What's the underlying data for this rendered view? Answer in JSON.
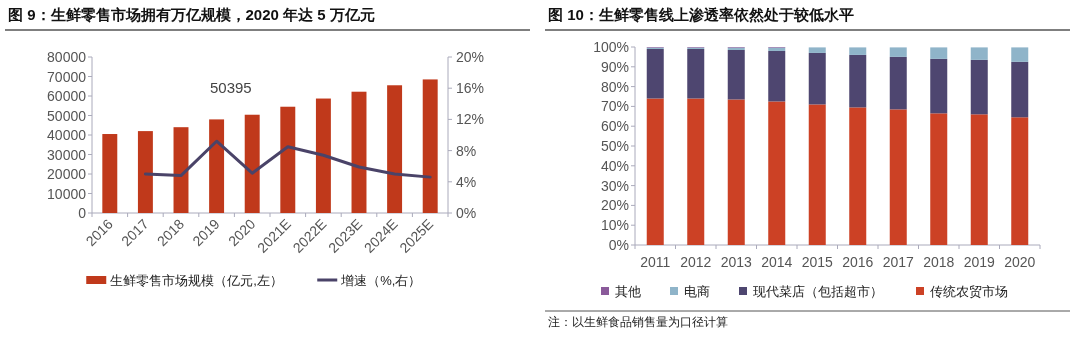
{
  "chart_data": [
    {
      "type": "bar",
      "title": "图 9：生鲜零售市场拥有万亿规模，2020 年达 5 万亿元",
      "categories": [
        "2016",
        "2017",
        "2018",
        "2019",
        "2020",
        "2021E",
        "2022E",
        "2023E",
        "2024E",
        "2025E"
      ],
      "series": [
        {
          "name": "生鲜零售市场规模（亿元,左）",
          "color": "#c0391b",
          "values": [
            40500,
            42000,
            44000,
            48000,
            50395,
            54500,
            58700,
            62200,
            65500,
            68500
          ]
        },
        {
          "name": "增速（%,右）",
          "type": "line",
          "axis": "y2",
          "color": "#4a4368",
          "values": [
            null,
            5.0,
            4.8,
            9.2,
            5.1,
            8.5,
            7.4,
            5.9,
            5.0,
            4.6
          ]
        }
      ],
      "ylim": [
        0,
        80000
      ],
      "yticks": [
        0,
        10000,
        20000,
        30000,
        40000,
        50000,
        60000,
        70000,
        80000
      ],
      "y2lim": [
        0,
        20
      ],
      "y2ticks": [
        {
          "value": 0,
          "label": "0%"
        },
        {
          "value": 4,
          "label": "4%"
        },
        {
          "value": 8,
          "label": "8%"
        },
        {
          "value": 12,
          "label": "12%"
        },
        {
          "value": 16,
          "label": "16%"
        },
        {
          "value": 20,
          "label": "20%"
        }
      ],
      "annotations": [
        {
          "text": "50395",
          "x": "2020",
          "y": 50395
        }
      ],
      "legend": "bottom",
      "grid": false
    },
    {
      "type": "bar",
      "stacked": true,
      "title": "图 10：生鲜零售线上渗透率依然处于较低水平",
      "categories": [
        "2011",
        "2012",
        "2013",
        "2014",
        "2015",
        "2016",
        "2017",
        "2018",
        "2019",
        "2020"
      ],
      "series": [
        {
          "name": "传统农贸市场",
          "color": "#cc4125",
          "values": [
            74,
            74,
            73.5,
            72.5,
            71,
            69.5,
            68.5,
            66.5,
            66,
            64.5
          ]
        },
        {
          "name": "现代菜店（包括超市）",
          "color": "#4e4670",
          "values": [
            25,
            25,
            25,
            25.5,
            26,
            26.5,
            26.5,
            27.5,
            27.5,
            28
          ]
        },
        {
          "name": "电商",
          "color": "#8fb4c9",
          "values": [
            0.7,
            0.7,
            1.2,
            1.7,
            2.8,
            3.8,
            4.8,
            5.8,
            6.3,
            7.3
          ]
        },
        {
          "name": "其他",
          "color": "#8a5a9a",
          "values": [
            0.3,
            0.3,
            0.3,
            0.3,
            null,
            null,
            null,
            null,
            null,
            null
          ]
        }
      ],
      "ylim": [
        0,
        100
      ],
      "yticks": [
        {
          "value": 0,
          "label": "0%"
        },
        {
          "value": 10,
          "label": "10%"
        },
        {
          "value": 20,
          "label": "20%"
        },
        {
          "value": 30,
          "label": "30%"
        },
        {
          "value": 40,
          "label": "40%"
        },
        {
          "value": 50,
          "label": "50%"
        },
        {
          "value": 60,
          "label": "60%"
        },
        {
          "value": 70,
          "label": "70%"
        },
        {
          "value": 80,
          "label": "80%"
        },
        {
          "value": 90,
          "label": "90%"
        },
        {
          "value": 100,
          "label": "100%"
        }
      ],
      "annotations": [
        "注：以生鲜食品销售量为口径计算"
      ],
      "legend": "bottom",
      "grid": false
    }
  ]
}
